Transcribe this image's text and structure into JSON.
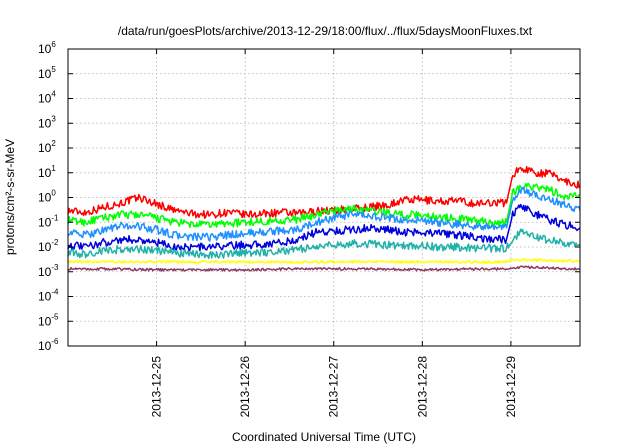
{
  "chart_data": {
    "type": "line",
    "title": "/data/run/goesPlots/archive/2013-12-29/18:00/flux/../flux/5daysMoonFluxes.txt",
    "xlabel": "Coordinated Universal Time (UTC)",
    "ylabel": "protons/cm²-s-sr-MeV",
    "y_scale": "log",
    "ylim": [
      1e-06,
      1000000.0
    ],
    "xlim": [
      0,
      5.78
    ],
    "grid": true,
    "x_ticks": [
      {
        "x": 1.0,
        "label": "2013-12-25"
      },
      {
        "x": 2.0,
        "label": "2013-12-26"
      },
      {
        "x": 3.0,
        "label": "2013-12-27"
      },
      {
        "x": 4.0,
        "label": "2013-12-28"
      },
      {
        "x": 5.0,
        "label": "2013-12-29"
      }
    ],
    "y_ticks": [
      {
        "exp": "-6",
        "value": 1e-06
      },
      {
        "exp": "-5",
        "value": 1e-05
      },
      {
        "exp": "-4",
        "value": 0.0001
      },
      {
        "exp": "-3",
        "value": 0.001
      },
      {
        "exp": "-2",
        "value": 0.01
      },
      {
        "exp": "-1",
        "value": 0.1
      },
      {
        "exp": "0",
        "value": 1
      },
      {
        "exp": "1",
        "value": 10
      },
      {
        "exp": "2",
        "value": 100
      },
      {
        "exp": "3",
        "value": 1000
      },
      {
        "exp": "4",
        "value": 10000
      },
      {
        "exp": "5",
        "value": 100000
      },
      {
        "exp": "6",
        "value": 1000000
      }
    ],
    "series": [
      {
        "color": "#ff0000",
        "x": [
          0,
          0.2,
          0.4,
          0.6,
          0.8,
          1.0,
          1.2,
          1.4,
          1.6,
          1.8,
          2.0,
          2.2,
          2.4,
          2.6,
          2.8,
          3.0,
          3.2,
          3.4,
          3.6,
          3.8,
          4.0,
          4.2,
          4.4,
          4.6,
          4.8,
          4.95,
          5.02,
          5.1,
          5.2,
          5.3,
          5.45,
          5.6,
          5.78
        ],
        "y": [
          0.3,
          0.25,
          0.4,
          0.6,
          1.0,
          0.55,
          0.3,
          0.22,
          0.2,
          0.25,
          0.2,
          0.22,
          0.25,
          0.22,
          0.28,
          0.3,
          0.35,
          0.4,
          0.5,
          0.8,
          0.8,
          0.7,
          0.75,
          0.55,
          0.65,
          0.6,
          8,
          15,
          13,
          10,
          9,
          5,
          3
        ]
      },
      {
        "color": "#00ff00",
        "x": [
          0,
          0.2,
          0.4,
          0.6,
          0.8,
          1.0,
          1.2,
          1.4,
          1.6,
          1.8,
          2.0,
          2.2,
          2.4,
          2.6,
          2.8,
          3.0,
          3.2,
          3.4,
          3.6,
          3.8,
          4.0,
          4.2,
          4.4,
          4.6,
          4.8,
          4.95,
          5.02,
          5.1,
          5.2,
          5.3,
          5.45,
          5.6,
          5.78
        ],
        "y": [
          0.12,
          0.1,
          0.15,
          0.2,
          0.2,
          0.15,
          0.1,
          0.08,
          0.08,
          0.09,
          0.1,
          0.11,
          0.12,
          0.13,
          0.2,
          0.3,
          0.35,
          0.3,
          0.25,
          0.2,
          0.2,
          0.16,
          0.14,
          0.12,
          0.1,
          0.1,
          1.5,
          3,
          3,
          2.5,
          2,
          1,
          1.2
        ]
      },
      {
        "color": "#1e90ff",
        "x": [
          0,
          0.2,
          0.4,
          0.6,
          0.8,
          1.0,
          1.2,
          1.4,
          1.6,
          1.8,
          2.0,
          2.2,
          2.4,
          2.6,
          2.8,
          3.0,
          3.2,
          3.4,
          3.6,
          3.8,
          4.0,
          4.2,
          4.4,
          4.6,
          4.8,
          4.95,
          5.02,
          5.1,
          5.2,
          5.3,
          5.45,
          5.6,
          5.78
        ],
        "y": [
          0.04,
          0.03,
          0.05,
          0.07,
          0.07,
          0.05,
          0.03,
          0.025,
          0.025,
          0.03,
          0.035,
          0.04,
          0.045,
          0.05,
          0.1,
          0.15,
          0.2,
          0.18,
          0.15,
          0.12,
          0.12,
          0.09,
          0.08,
          0.07,
          0.06,
          0.06,
          0.8,
          2,
          1.6,
          1.2,
          0.8,
          0.5,
          0.3
        ]
      },
      {
        "color": "#0000dd",
        "x": [
          0,
          0.2,
          0.4,
          0.6,
          0.8,
          1.0,
          1.2,
          1.4,
          1.6,
          1.8,
          2.0,
          2.2,
          2.4,
          2.6,
          2.8,
          3.0,
          3.2,
          3.4,
          3.6,
          3.8,
          4.0,
          4.2,
          4.4,
          4.6,
          4.8,
          4.95,
          5.02,
          5.1,
          5.2,
          5.3,
          5.45,
          5.6,
          5.78
        ],
        "y": [
          0.012,
          0.01,
          0.015,
          0.02,
          0.02,
          0.015,
          0.01,
          0.01,
          0.01,
          0.011,
          0.012,
          0.013,
          0.015,
          0.02,
          0.04,
          0.045,
          0.05,
          0.06,
          0.05,
          0.04,
          0.04,
          0.035,
          0.03,
          0.025,
          0.02,
          0.02,
          0.2,
          0.4,
          0.3,
          0.2,
          0.12,
          0.08,
          0.06
        ]
      },
      {
        "color": "#20b2aa",
        "x": [
          0,
          0.2,
          0.4,
          0.6,
          0.8,
          1.0,
          1.2,
          1.4,
          1.6,
          1.8,
          2.0,
          2.2,
          2.4,
          2.6,
          2.8,
          3.0,
          3.2,
          3.4,
          3.6,
          3.8,
          4.0,
          4.2,
          4.4,
          4.6,
          4.8,
          4.95,
          5.02,
          5.1,
          5.2,
          5.3,
          5.45,
          5.6,
          5.78
        ],
        "y": [
          0.006,
          0.005,
          0.007,
          0.008,
          0.008,
          0.007,
          0.006,
          0.005,
          0.005,
          0.005,
          0.006,
          0.006,
          0.007,
          0.008,
          0.01,
          0.012,
          0.014,
          0.013,
          0.012,
          0.011,
          0.011,
          0.01,
          0.01,
          0.009,
          0.009,
          0.009,
          0.02,
          0.04,
          0.035,
          0.025,
          0.018,
          0.015,
          0.013
        ]
      },
      {
        "color": "#ffff00",
        "x": [
          0,
          0.5,
          1.0,
          1.5,
          2.0,
          2.5,
          3.0,
          3.5,
          4.0,
          4.5,
          4.95,
          5.02,
          5.2,
          5.5,
          5.78
        ],
        "y": [
          0.0025,
          0.0025,
          0.0025,
          0.0025,
          0.0025,
          0.0025,
          0.0025,
          0.0025,
          0.0025,
          0.0025,
          0.0025,
          0.003,
          0.003,
          0.0028,
          0.0027
        ]
      },
      {
        "color": "#8b3a62",
        "x": [
          0,
          0.5,
          1.0,
          1.5,
          2.0,
          2.5,
          3.0,
          3.5,
          4.0,
          4.5,
          4.95,
          5.02,
          5.2,
          5.5,
          5.78
        ],
        "y": [
          0.0013,
          0.0013,
          0.0012,
          0.0012,
          0.0012,
          0.0013,
          0.0013,
          0.0013,
          0.0012,
          0.0013,
          0.0013,
          0.0015,
          0.0015,
          0.0014,
          0.0013
        ]
      }
    ]
  }
}
